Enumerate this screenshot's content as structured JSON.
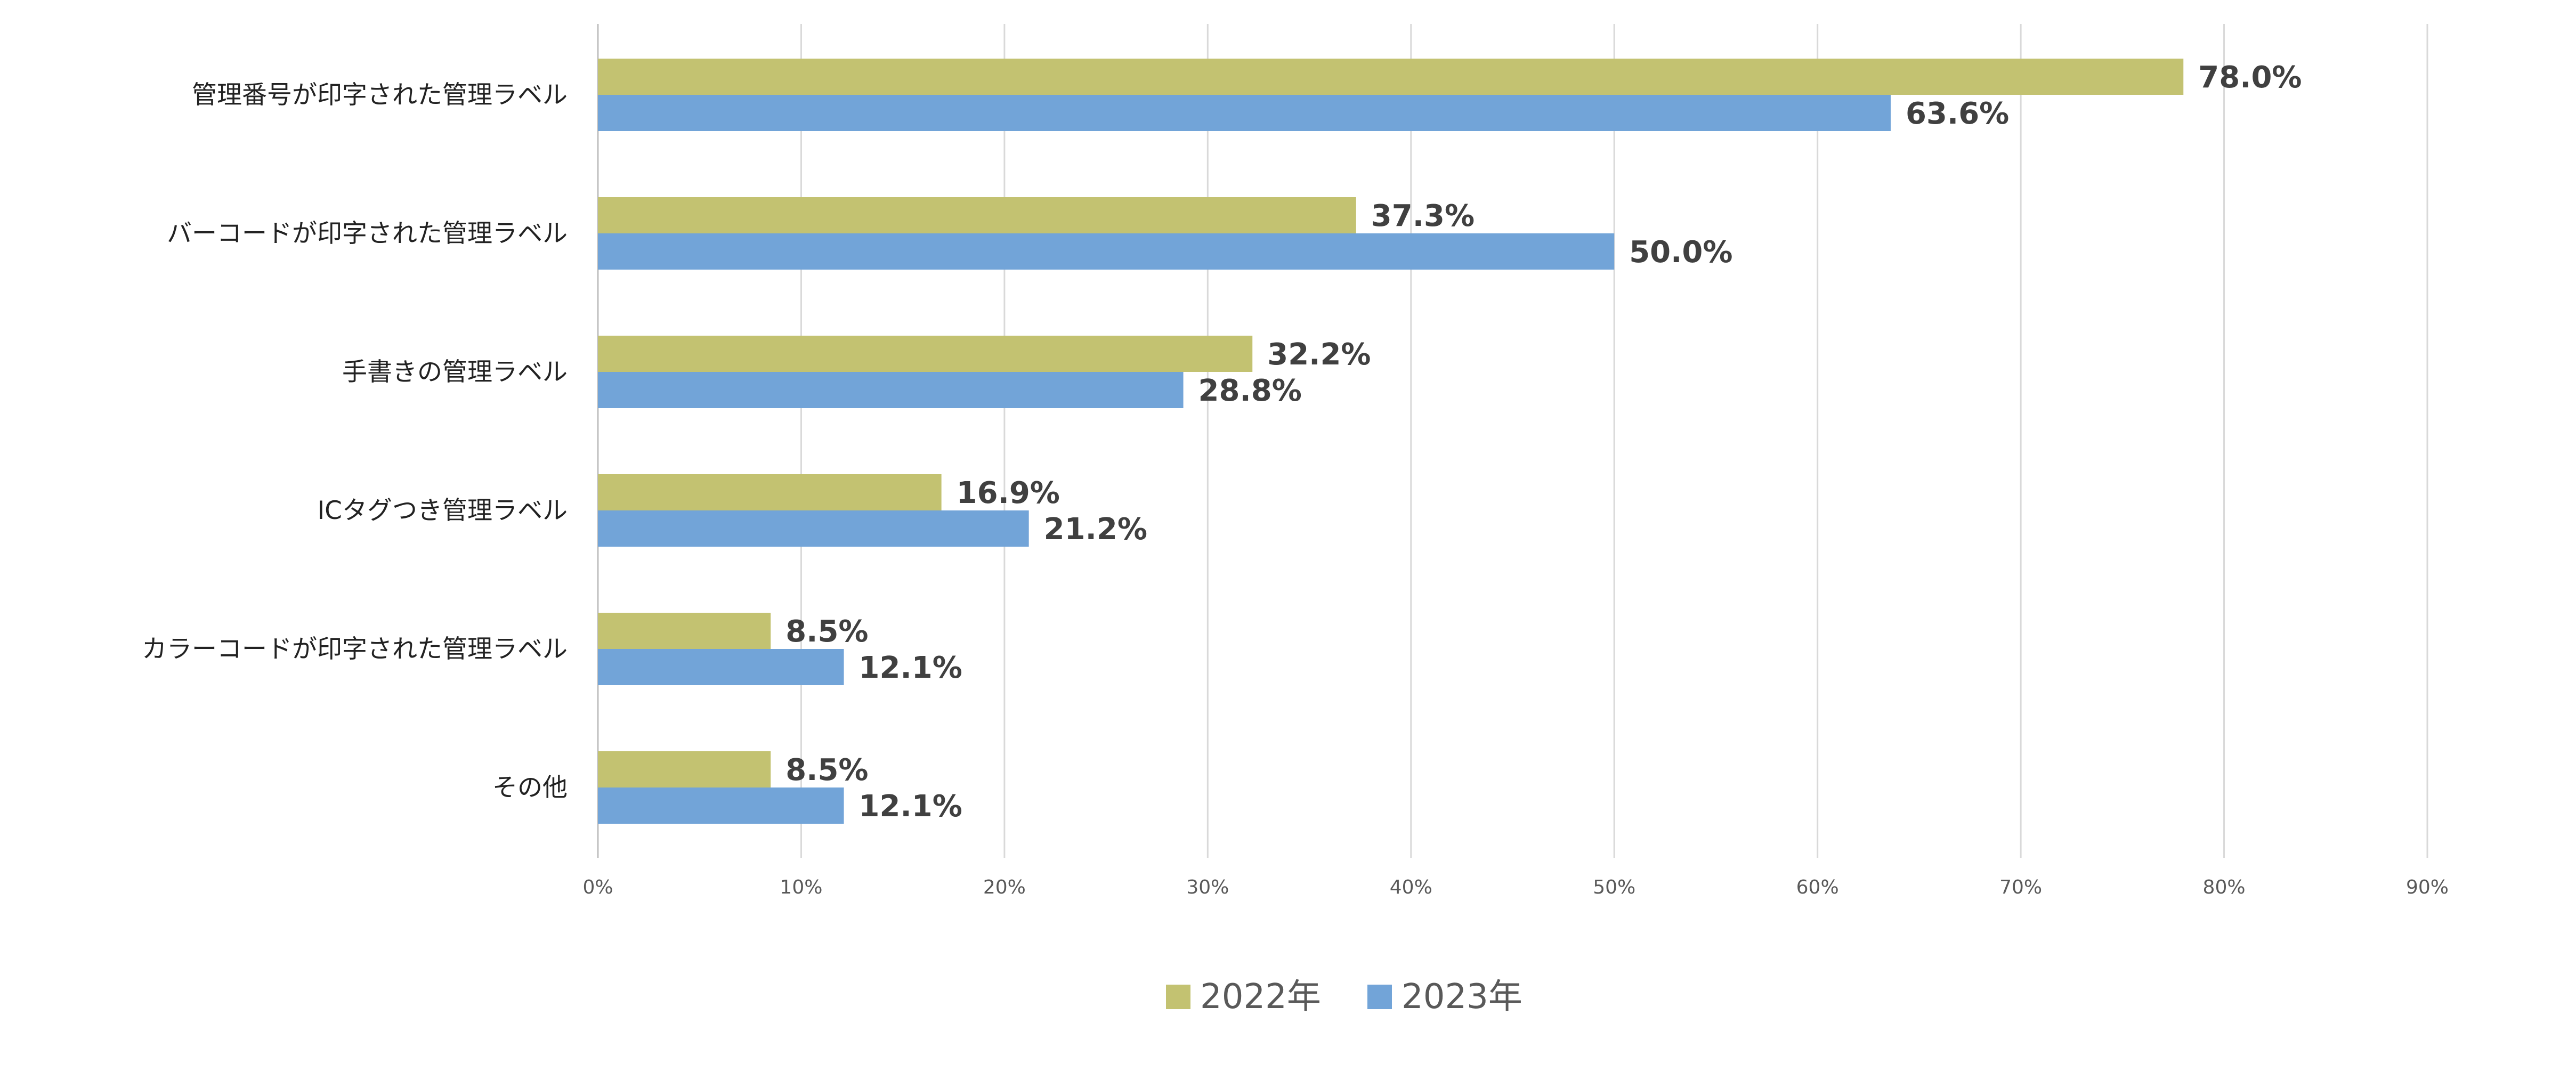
{
  "chart_data": {
    "type": "bar",
    "orientation": "horizontal",
    "categories": [
      "管理番号が印字された管理ラベル",
      "バーコードが印字された管理ラベル",
      "手書きの管理ラベル",
      "ICタグつき管理ラベル",
      "カラーコードが印字された管理ラベル",
      "その他"
    ],
    "series": [
      {
        "name": "2022年",
        "color": "#c3c271",
        "values": [
          78.0,
          37.3,
          32.2,
          16.9,
          8.5,
          8.5
        ]
      },
      {
        "name": "2023年",
        "color": "#72a4d8",
        "values": [
          63.6,
          50.0,
          28.8,
          21.2,
          12.1,
          12.1
        ]
      }
    ],
    "value_labels": [
      [
        "78.0%",
        "37.3%",
        "32.2%",
        "16.9%",
        "8.5%",
        "8.5%"
      ],
      [
        "63.6%",
        "50.0%",
        "28.8%",
        "21.2%",
        "12.1%",
        "12.1%"
      ]
    ],
    "xticks": [
      0,
      10,
      20,
      30,
      40,
      50,
      60,
      70,
      80,
      90
    ],
    "xtick_labels": [
      "0%",
      "10%",
      "20%",
      "30%",
      "40%",
      "50%",
      "60%",
      "70%",
      "80%",
      "90%"
    ],
    "xlim": [
      0,
      90
    ],
    "grid": true,
    "legend_position": "bottom",
    "title": "",
    "xlabel": "",
    "ylabel": ""
  }
}
